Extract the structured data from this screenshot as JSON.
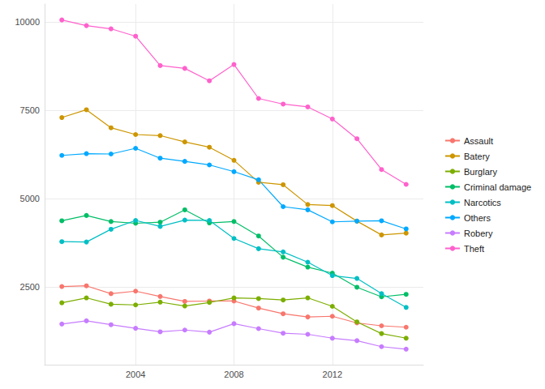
{
  "chart_data": {
    "type": "line",
    "x": [
      2001,
      2002,
      2003,
      2004,
      2005,
      2006,
      2007,
      2008,
      2009,
      2010,
      2011,
      2012,
      2013,
      2014,
      2015
    ],
    "xlim": [
      2000.3,
      2015.7
    ],
    "xticks": [
      2004,
      2008,
      2012
    ],
    "ylim": [
      300,
      10500
    ],
    "yticks": [
      2500,
      5000,
      7500,
      10000
    ],
    "grid": true,
    "legend": "right",
    "marker": "circle",
    "series": [
      {
        "name": "Assault",
        "color": "#F8766D",
        "values": [
          2510,
          2530,
          2310,
          2380,
          2230,
          2090,
          2100,
          2100,
          1900,
          1740,
          1650,
          1670,
          1480,
          1400,
          1360
        ]
      },
      {
        "name": "Batery",
        "color": "#CD9600",
        "values": [
          7290,
          7510,
          7000,
          6810,
          6780,
          6600,
          6450,
          6080,
          5460,
          5390,
          4830,
          4800,
          4360,
          3970,
          4020
        ]
      },
      {
        "name": "Burglary",
        "color": "#7CAE00",
        "values": [
          2050,
          2190,
          2010,
          1990,
          2070,
          1960,
          2060,
          2190,
          2170,
          2130,
          2190,
          1950,
          1510,
          1180,
          1050
        ]
      },
      {
        "name": "Criminal damage",
        "color": "#00BE67",
        "values": [
          4370,
          4520,
          4350,
          4300,
          4330,
          4680,
          4310,
          4350,
          3940,
          3340,
          3060,
          2890,
          2490,
          2220,
          2290
        ]
      },
      {
        "name": "Narcotics",
        "color": "#00BFC4",
        "values": [
          3780,
          3770,
          4130,
          4380,
          4210,
          4390,
          4380,
          3870,
          3580,
          3490,
          3200,
          2820,
          2740,
          2310,
          1920
        ]
      },
      {
        "name": "Others",
        "color": "#00A9FF",
        "values": [
          6220,
          6270,
          6260,
          6420,
          6140,
          6050,
          5950,
          5760,
          5530,
          4770,
          4680,
          4340,
          4360,
          4370,
          4140
        ]
      },
      {
        "name": "Robery",
        "color": "#C77CFF",
        "values": [
          1450,
          1540,
          1430,
          1330,
          1230,
          1280,
          1220,
          1460,
          1320,
          1190,
          1160,
          1050,
          980,
          810,
          740
        ]
      },
      {
        "name": "Theft",
        "color": "#FF61CC",
        "values": [
          10050,
          9890,
          9800,
          9590,
          8760,
          8680,
          8330,
          8790,
          7830,
          7670,
          7590,
          7250,
          6690,
          5820,
          5400
        ]
      }
    ]
  }
}
